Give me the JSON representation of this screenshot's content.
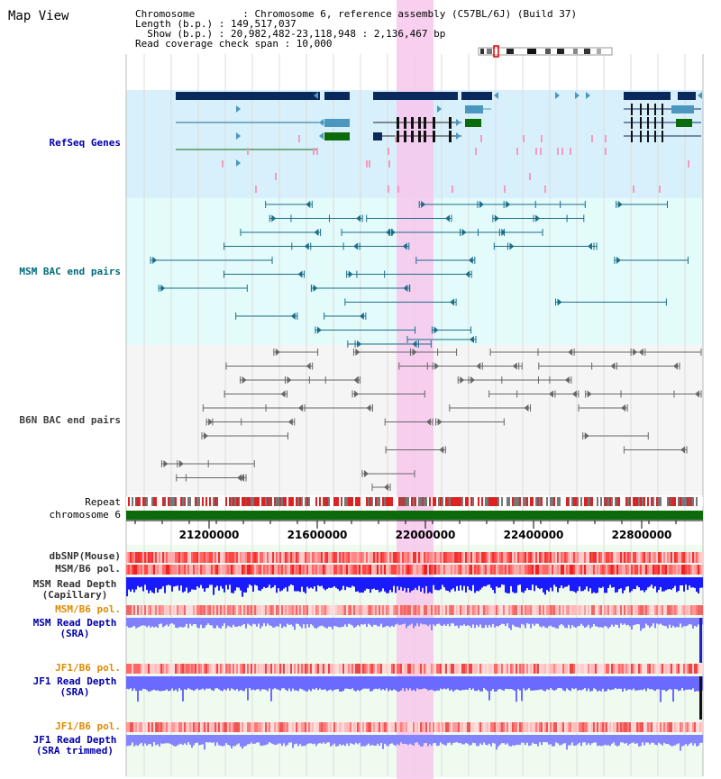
{
  "page": {
    "title": "Map View"
  },
  "info": {
    "chromosome": "Chromosome        : Chromosome 6, reference assembly (C57BL/6J) (Build 37)",
    "length": "Length (b.p.) : 149,517,037",
    "show": "  Show (b.p.) : 20,982,482-23,118,948 : 2,136,467 bp",
    "span": "Read coverage check span : 10,000"
  },
  "tracks": {
    "refseq": {
      "label": "RefSeq Genes",
      "color": "#0000aa"
    },
    "msm_bac": {
      "label": "MSM BAC end pairs",
      "color": "#006b7a"
    },
    "b6n_bac": {
      "label": "B6N BAC end pairs",
      "color": "#404040"
    },
    "repeat": {
      "label": "Repeat"
    },
    "chromosome": {
      "label": "chromosome 6"
    },
    "dbsnp": {
      "label": "dbSNP(Mouse)"
    },
    "msm_pol": {
      "label": "MSM/B6 pol."
    },
    "msm_depth_cap": {
      "line1": "MSM Read Depth",
      "line2": "(Capillary)"
    },
    "msm_pol2": {
      "label": "MSM/B6 pol."
    },
    "msm_depth_sra": {
      "line1": "MSM Read Depth",
      "line2": "(SRA)"
    },
    "jf1_pol": {
      "label": "JF1/B6 pol."
    },
    "jf1_depth_sra": {
      "line1": "JF1 Read Depth",
      "line2": "(SRA)"
    },
    "jf1_pol2": {
      "label": "JF1/B6 pol."
    },
    "jf1_depth_trim": {
      "line1": "JF1 Read Depth",
      "line2": "(SRA trimmed)"
    }
  },
  "axis": {
    "ticks": [
      "21200000",
      "21600000",
      "22000000",
      "22400000",
      "22800000"
    ]
  },
  "colors": {
    "highlight": "#f7c7ec",
    "refseq_bg": "#d8f0fb",
    "msm_bg": "#e3fbfb",
    "b6n_bg": "#f5f5f5",
    "lower_bg": "#ecfbec",
    "navy": "#0a2a5e",
    "teal": "#1b6e88",
    "steel": "#4b97c0",
    "green": "#0b6b0b",
    "gray": "#555555",
    "chrom": "#0b6b0b",
    "depth_blue": "#2222ee",
    "depth_light": "#8080ff",
    "pol_red": "#ee3333",
    "pol_pink": "#f7a8a8"
  }
}
